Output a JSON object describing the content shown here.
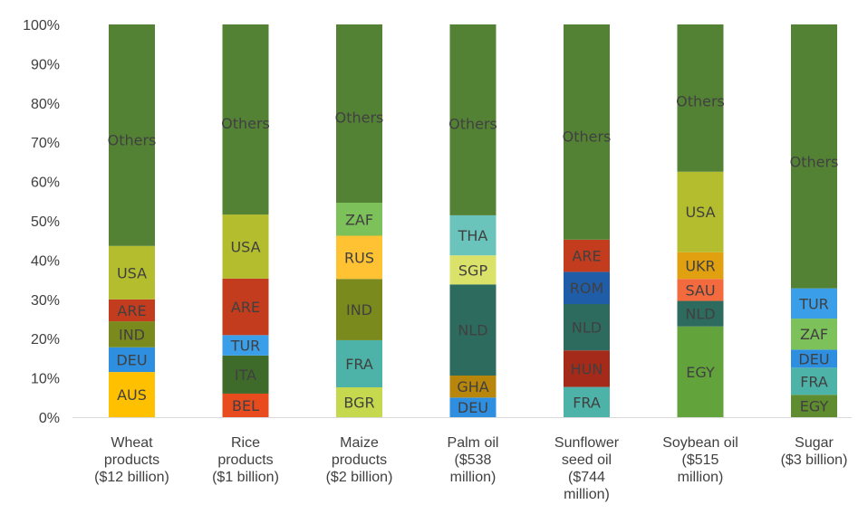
{
  "chart_data": {
    "type": "bar",
    "stacked": true,
    "ylim": [
      0,
      100
    ],
    "yticks": [
      "0%",
      "10%",
      "20%",
      "30%",
      "40%",
      "50%",
      "60%",
      "70%",
      "80%",
      "90%",
      "100%"
    ],
    "grid": false,
    "legend": "none",
    "categories": [
      {
        "lines": [
          "Wheat",
          "products",
          "($12 billion)"
        ]
      },
      {
        "lines": [
          "Rice",
          "products",
          "($1 billion)"
        ]
      },
      {
        "lines": [
          "Maize",
          "products",
          "($2 billion)"
        ]
      },
      {
        "lines": [
          "Palm oil",
          "($538",
          "million)"
        ]
      },
      {
        "lines": [
          "Sunflower",
          "seed oil",
          "($744",
          "million)"
        ]
      },
      {
        "lines": [
          "Soybean oil",
          "($515",
          "million)"
        ]
      },
      {
        "lines": [
          "Sugar",
          "($3 billion)"
        ]
      }
    ],
    "bars": [
      {
        "segments": [
          {
            "label": "AUS",
            "value": 11.5,
            "color": "#ffc000"
          },
          {
            "label": "DEU",
            "value": 6.3,
            "color": "#2e8fe0"
          },
          {
            "label": "IND",
            "value": 6.6,
            "color": "#7b8a1c"
          },
          {
            "label": "ARE",
            "value": 5.6,
            "color": "#c43c1e"
          },
          {
            "label": "USA",
            "value": 13.6,
            "color": "#b3bd2d"
          },
          {
            "label": "Others",
            "value": 56.4,
            "color": "#548235"
          }
        ]
      },
      {
        "segments": [
          {
            "label": "BEL",
            "value": 6.0,
            "color": "#e84c1e"
          },
          {
            "label": "ITA",
            "value": 9.7,
            "color": "#3e6a2a"
          },
          {
            "label": "TUR",
            "value": 5.2,
            "color": "#3a9ee8"
          },
          {
            "label": "ARE",
            "value": 14.4,
            "color": "#c43c1e"
          },
          {
            "label": "USA",
            "value": 16.3,
            "color": "#b3bd2d"
          },
          {
            "label": "Others",
            "value": 48.4,
            "color": "#548235"
          }
        ]
      },
      {
        "segments": [
          {
            "label": "BGR",
            "value": 7.6,
            "color": "#c6d84e"
          },
          {
            "label": "FRA",
            "value": 12.0,
            "color": "#4db3a8"
          },
          {
            "label": "IND",
            "value": 15.6,
            "color": "#7b8a1c"
          },
          {
            "label": "RUS",
            "value": 11.0,
            "color": "#ffc233"
          },
          {
            "label": "ZAF",
            "value": 8.4,
            "color": "#7dc15a"
          },
          {
            "label": "Others",
            "value": 45.4,
            "color": "#548235"
          }
        ]
      },
      {
        "segments": [
          {
            "label": "DEU",
            "value": 5.0,
            "color": "#2e8fe0"
          },
          {
            "label": "GHA",
            "value": 5.6,
            "color": "#b8860b"
          },
          {
            "label": "NLD",
            "value": 23.2,
            "color": "#2e6b5f"
          },
          {
            "label": "SGP",
            "value": 7.4,
            "color": "#dbe26a"
          },
          {
            "label": "THA",
            "value": 10.2,
            "color": "#6bc4bc"
          },
          {
            "label": "Others",
            "value": 48.6,
            "color": "#548235"
          }
        ]
      },
      {
        "segments": [
          {
            "label": "FRA",
            "value": 7.7,
            "color": "#4db3a8"
          },
          {
            "label": "HUN",
            "value": 9.3,
            "color": "#a52a1a"
          },
          {
            "label": "NLD",
            "value": 11.8,
            "color": "#2e6b5f"
          },
          {
            "label": "ROM",
            "value": 8.2,
            "color": "#1f5da8"
          },
          {
            "label": "ARE",
            "value": 8.2,
            "color": "#c43c1e"
          },
          {
            "label": "Others",
            "value": 54.8,
            "color": "#548235"
          }
        ]
      },
      {
        "segments": [
          {
            "label": "EGY",
            "value": 23.1,
            "color": "#63a33c"
          },
          {
            "label": "NLD",
            "value": 6.5,
            "color": "#2e6b5f"
          },
          {
            "label": "SAU",
            "value": 5.6,
            "color": "#f26a3e"
          },
          {
            "label": "UKR",
            "value": 6.8,
            "color": "#e0a010"
          },
          {
            "label": "USA",
            "value": 20.5,
            "color": "#b3bd2d"
          },
          {
            "label": "Others",
            "value": 37.5,
            "color": "#548235"
          }
        ]
      },
      {
        "segments": [
          {
            "label": "EGY",
            "value": 5.7,
            "color": "#5e8c2f"
          },
          {
            "label": "FRA",
            "value": 6.9,
            "color": "#4db3a8"
          },
          {
            "label": "DEU",
            "value": 4.6,
            "color": "#2e8fe0"
          },
          {
            "label": "ZAF",
            "value": 7.9,
            "color": "#7dc15a"
          },
          {
            "label": "TUR",
            "value": 7.7,
            "color": "#3a9ee8"
          },
          {
            "label": "Others",
            "value": 67.2,
            "color": "#548235"
          }
        ]
      }
    ]
  }
}
